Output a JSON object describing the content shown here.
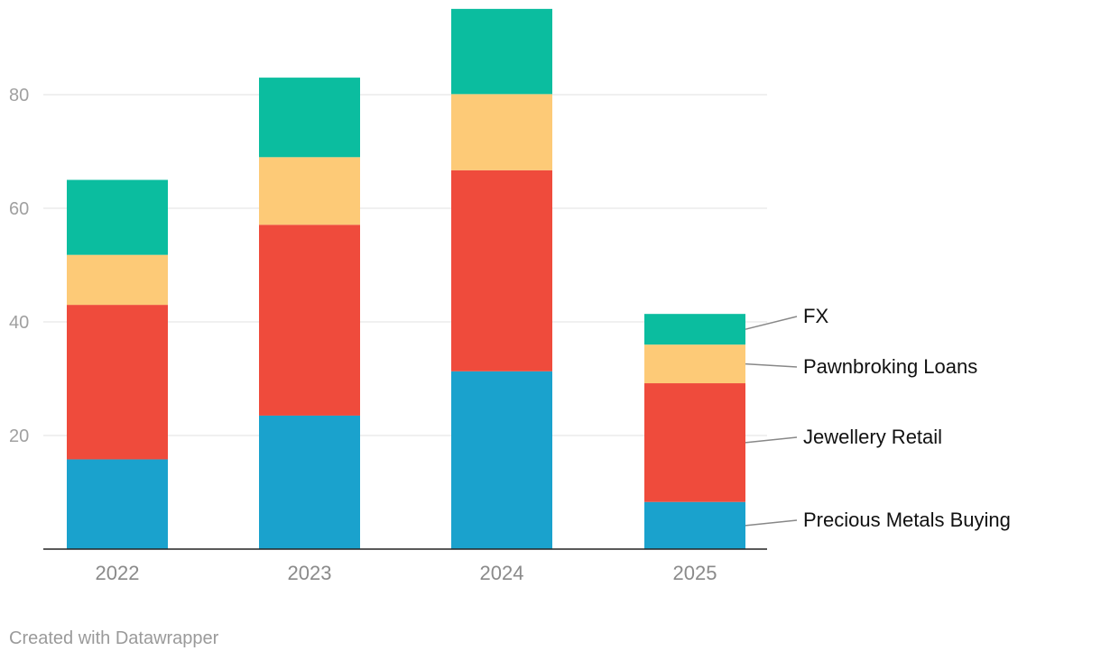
{
  "chart_data": {
    "type": "bar",
    "stacked": true,
    "categories": [
      "2022",
      "2023",
      "2024",
      "2025"
    ],
    "series": [
      {
        "name": "Precious Metals Buying",
        "color": "#1aa2cd",
        "values": [
          15.8,
          23.5,
          31.3,
          8.3
        ]
      },
      {
        "name": "Jewellery Retail",
        "color": "#ef4b3c",
        "values": [
          27.2,
          33.6,
          35.4,
          20.9
        ]
      },
      {
        "name": "Pawnbroking Loans",
        "color": "#fdca77",
        "values": [
          8.8,
          11.9,
          13.4,
          6.8
        ]
      },
      {
        "name": "FX",
        "color": "#0bbd9f",
        "values": [
          13.2,
          14.0,
          15.0,
          5.4
        ]
      }
    ],
    "yticks": [
      20,
      40,
      60,
      80
    ],
    "ylim": [
      0,
      95
    ],
    "grid": true,
    "legend_placement": "right, direct labels"
  },
  "footer": "Created with Datawrapper"
}
